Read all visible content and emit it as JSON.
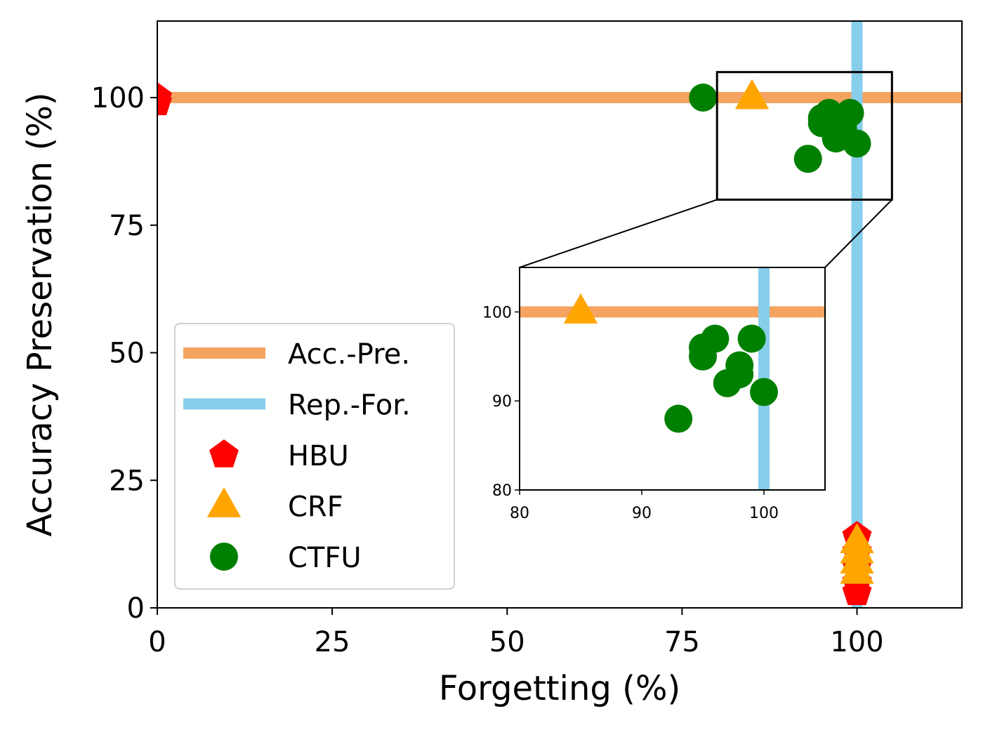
{
  "chart_data": {
    "type": "scatter",
    "xlabel": "Forgetting (%)",
    "ylabel": "Accuracy Preservation (%)",
    "xlim": [
      0,
      115
    ],
    "ylim": [
      0,
      115
    ],
    "xticks": [
      "0",
      "25",
      "50",
      "75",
      "100"
    ],
    "yticks": [
      "0",
      "25",
      "50",
      "75",
      "100"
    ],
    "grid": false,
    "legend_position": "lower left",
    "reference_lines": [
      {
        "name": "Acc.-Pre.",
        "orientation": "horizontal",
        "value": 100,
        "color": "#f4a460"
      },
      {
        "name": "Rep.-For.",
        "orientation": "vertical",
        "value": 100,
        "color": "#87ceeb"
      }
    ],
    "series": [
      {
        "name": "HBU",
        "marker": "pentagon",
        "color": "#ff0000",
        "points": [
          [
            0,
            99
          ],
          [
            0,
            100
          ],
          [
            100,
            14
          ],
          [
            100,
            11
          ],
          [
            100,
            8
          ],
          [
            100,
            5
          ],
          [
            100,
            3
          ]
        ]
      },
      {
        "name": "CRF",
        "marker": "triangle",
        "color": "#ffa500",
        "points": [
          [
            85,
            100
          ],
          [
            100,
            13
          ],
          [
            100,
            11
          ],
          [
            100,
            9
          ],
          [
            100,
            7
          ]
        ]
      },
      {
        "name": "CTFU",
        "marker": "circle",
        "color": "#008000",
        "points": [
          [
            78,
            100
          ],
          [
            93,
            88
          ],
          [
            95,
            95
          ],
          [
            95,
            96
          ],
          [
            96,
            97
          ],
          [
            97,
            92
          ],
          [
            98,
            93
          ],
          [
            98,
            94
          ],
          [
            99,
            97
          ],
          [
            100,
            91
          ]
        ]
      }
    ],
    "inset": {
      "xlim": [
        80,
        105
      ],
      "ylim": [
        80,
        105
      ],
      "xticks": [
        "80",
        "90",
        "100"
      ],
      "yticks": [
        "80",
        "90",
        "100"
      ]
    }
  }
}
